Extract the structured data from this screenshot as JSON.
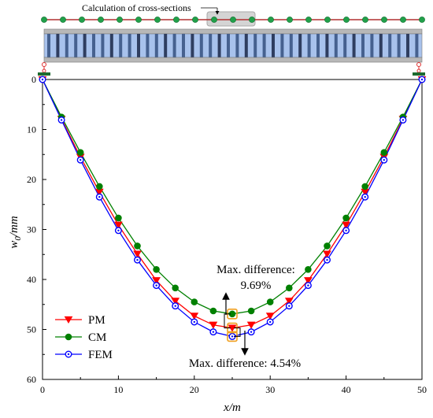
{
  "diagram": {
    "caption": "Calculation of cross-sections"
  },
  "chart_data": {
    "type": "line",
    "xlabel": "x/m",
    "ylabel_main": "w",
    "ylabel_sub": "0",
    "ylabel_unit": "/mm",
    "xlim": [
      0,
      50
    ],
    "ylim": [
      0,
      60
    ],
    "y_inverted": true,
    "xticks": [
      "0",
      "10",
      "20",
      "30",
      "40",
      "50"
    ],
    "yticks": [
      "0",
      "10",
      "20",
      "30",
      "40",
      "50",
      "60"
    ],
    "grid": false,
    "legend_position": "bottom-left",
    "x": [
      0,
      2.5,
      5,
      7.5,
      10,
      12.5,
      15,
      17.5,
      20,
      22.5,
      25,
      27.5,
      30,
      32.5,
      35,
      37.5,
      40,
      42.5,
      45,
      47.5,
      50
    ],
    "series": [
      {
        "name": "PM",
        "color": "#ff0000",
        "marker": "triangle-down",
        "values": [
          0,
          7.9,
          15.5,
          22.5,
          29.1,
          34.9,
          40.2,
          44.3,
          47.3,
          49.1,
          49.7,
          49.1,
          47.3,
          44.3,
          40.2,
          34.9,
          29.1,
          22.5,
          15.5,
          7.9,
          0
        ]
      },
      {
        "name": "CM",
        "color": "#008000",
        "marker": "circle-filled",
        "values": [
          0,
          7.5,
          14.6,
          21.4,
          27.7,
          33.3,
          38.0,
          41.7,
          44.5,
          46.3,
          46.9,
          46.3,
          44.5,
          41.7,
          38.0,
          33.3,
          27.7,
          21.4,
          14.6,
          7.5,
          0
        ]
      },
      {
        "name": "FEM",
        "color": "#0000ff",
        "marker": "circle-open",
        "values": [
          0,
          8.1,
          16.1,
          23.5,
          30.2,
          36.1,
          41.2,
          45.3,
          48.5,
          50.5,
          51.4,
          50.5,
          48.5,
          45.3,
          41.2,
          36.1,
          30.2,
          23.5,
          16.1,
          8.1,
          0
        ]
      }
    ],
    "annotations": [
      {
        "text": "Max. difference:",
        "line2": "9.69%"
      },
      {
        "text": "Max. difference: 4.54%"
      }
    ]
  }
}
